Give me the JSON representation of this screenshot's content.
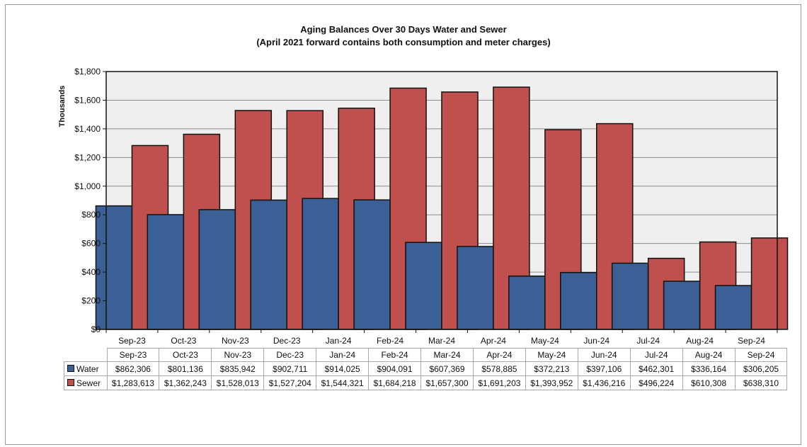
{
  "chart_data": {
    "type": "bar",
    "title": "Aging Balances Over 30 Days Water and Sewer",
    "subtitle": "(April 2021 forward contains both consumption and meter charges)",
    "ylabel": "Thousands",
    "xlabel": "",
    "ylim": [
      0,
      1800
    ],
    "ytick_step": 200,
    "ytick_labels": [
      "$0",
      "$200",
      "$400",
      "$600",
      "$800",
      "$1,000",
      "$1,200",
      "$1,400",
      "$1,600",
      "$1,800"
    ],
    "grid": true,
    "legend": "data-table",
    "categories": [
      "Sep-23",
      "Oct-23",
      "Nov-23",
      "Dec-23",
      "Jan-24",
      "Feb-24",
      "Mar-24",
      "Apr-24",
      "May-24",
      "Jun-24",
      "Jul-24",
      "Aug-24",
      "Sep-24"
    ],
    "series": [
      {
        "name": "Water",
        "color": "#3b6095",
        "values": [
          862.306,
          801.136,
          835.942,
          902.711,
          914.025,
          904.091,
          607.369,
          578.885,
          372.213,
          397.106,
          462.301,
          336.164,
          306.205
        ],
        "value_labels": [
          "$862,306",
          "$801,136",
          "$835,942",
          "$902,711",
          "$914,025",
          "$904,091",
          "$607,369",
          "$578,885",
          "$372,213",
          "$397,106",
          "$462,301",
          "$336,164",
          "$306,205"
        ]
      },
      {
        "name": "Sewer",
        "color": "#c0504d",
        "values": [
          1283.613,
          1362.243,
          1528.013,
          1527.204,
          1544.321,
          1684.218,
          1657.3,
          1691.203,
          1393.952,
          1436.216,
          496.224,
          610.308,
          638.31
        ],
        "value_labels": [
          "$1,283,613",
          "$1,362,243",
          "$1,528,013",
          "$1,527,204",
          "$1,544,321",
          "$1,684,218",
          "$1,657,300",
          "$1,691,203",
          "$1,393,952",
          "$1,436,216",
          "$496,224",
          "$610,308",
          "$638,310"
        ]
      }
    ]
  }
}
